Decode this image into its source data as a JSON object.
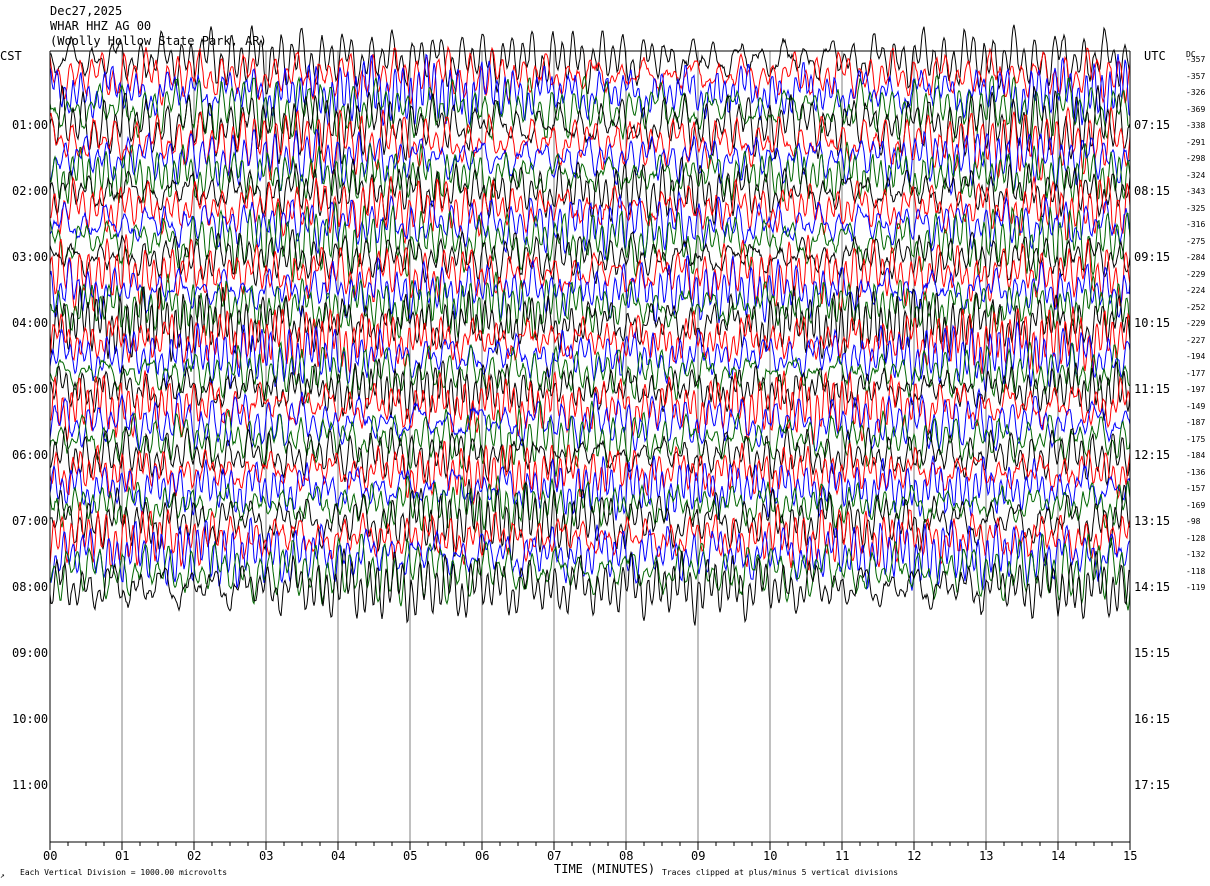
{
  "header": {
    "date": "Dec27,2025",
    "station": "WHAR HHZ AG 00",
    "location": "(Woolly Hollow State Park, AR)"
  },
  "chart_data": {
    "type": "line",
    "title": "",
    "xlabel": "TIME (MINUTES)",
    "x_ticks": [
      "00",
      "01",
      "02",
      "03",
      "04",
      "05",
      "06",
      "07",
      "08",
      "09",
      "10",
      "11",
      "12",
      "13",
      "14",
      "15"
    ],
    "xlim": [
      0,
      15
    ],
    "left_axis_label": "CST",
    "right_axis_label": "UTC",
    "left_hour_labels": [
      "01:00",
      "02:00",
      "03:00",
      "04:00",
      "05:00",
      "06:00",
      "07:00",
      "08:00",
      "09:00",
      "10:00",
      "11:00"
    ],
    "right_hour_labels": [
      "07:15",
      "08:15",
      "09:15",
      "10:15",
      "11:15",
      "12:15",
      "13:15",
      "14:15",
      "15:15",
      "16:15",
      "17:15"
    ],
    "dc_label": "DC",
    "dc_offsets": [
      -357,
      -357,
      -326,
      -369,
      -338,
      -291,
      -298,
      -324,
      -343,
      -325,
      -316,
      -275,
      -284,
      -229,
      -224,
      -252,
      -229,
      -227,
      -194,
      -177,
      -197,
      -149,
      -187,
      -175,
      -184,
      -136,
      -157,
      -169,
      -98,
      -128,
      -132,
      -118,
      -119
    ],
    "trace_colors": [
      "#000000",
      "#ff0000",
      "#0000ff",
      "#006600"
    ],
    "vgrid_color": "#808080",
    "footer_left": "Each Vertical Division = 1000.00 microvolts",
    "footer_right": "Traces clipped at plus/minus 5 vertical divisions"
  }
}
